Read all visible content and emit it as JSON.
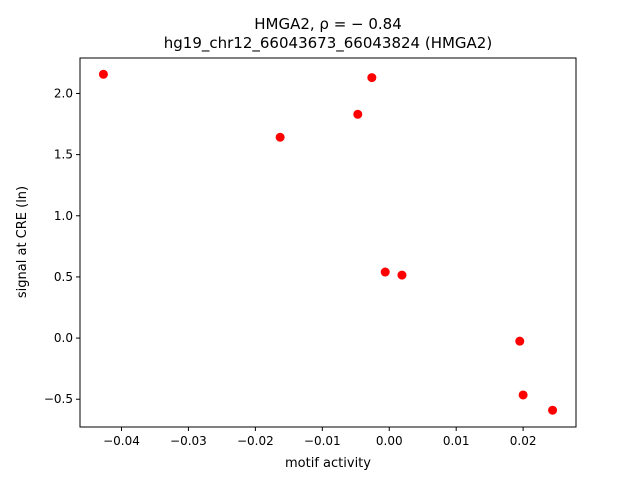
{
  "chart_data": {
    "type": "scatter",
    "title_line1": "HMGA2, ρ = − 0.84",
    "title_line2": "hg19_chr12_66043673_66043824 (HMGA2)",
    "xlabel": "motif activity",
    "ylabel": "signal at CRE (ln)",
    "xlim": [
      -0.0462,
      0.0279
    ],
    "ylim": [
      -0.727,
      2.29
    ],
    "xticks": [
      -0.04,
      -0.03,
      -0.02,
      -0.01,
      0.0,
      0.01,
      0.02
    ],
    "xtick_labels": [
      "−0.04",
      "−0.03",
      "−0.02",
      "−0.01",
      "0.00",
      "0.01",
      "0.02"
    ],
    "yticks": [
      -0.5,
      0.0,
      0.5,
      1.0,
      1.5,
      2.0
    ],
    "ytick_labels": [
      "−0.5",
      "0.0",
      "0.5",
      "1.0",
      "1.5",
      "2.0"
    ],
    "grid": false,
    "color": "#ff0000",
    "points": [
      {
        "x": -0.0427,
        "y": 2.157
      },
      {
        "x": -0.0163,
        "y": 1.642
      },
      {
        "x": -0.0047,
        "y": 1.83
      },
      {
        "x": -0.0026,
        "y": 2.13
      },
      {
        "x": -0.0006,
        "y": 0.54
      },
      {
        "x": 0.0019,
        "y": 0.515
      },
      {
        "x": 0.0195,
        "y": -0.025
      },
      {
        "x": 0.02,
        "y": -0.465
      },
      {
        "x": 0.0244,
        "y": -0.59
      }
    ]
  }
}
